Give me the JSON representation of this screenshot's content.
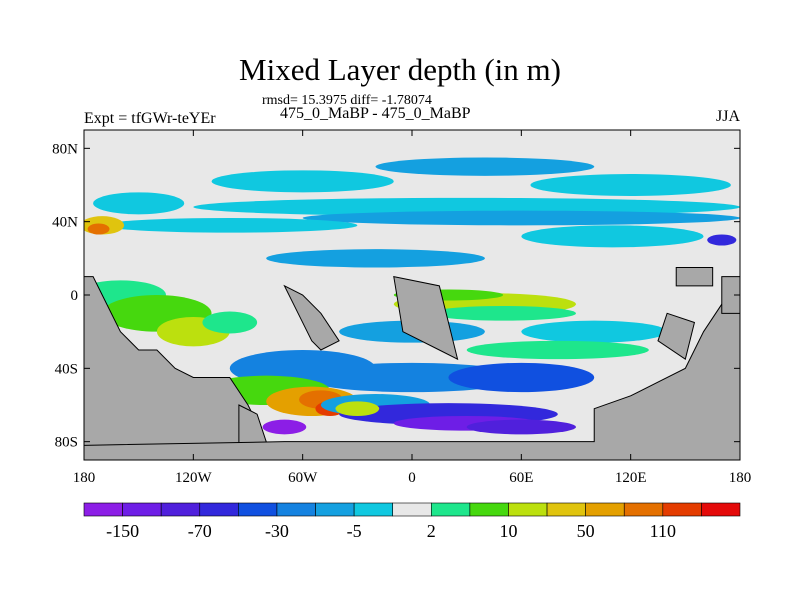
{
  "title": "Mixed Layer depth (in m)",
  "stats": "rmsd= 15.3975 diff= -1.78074",
  "subtitle": "475_0_MaBP - 475_0_MaBP",
  "left_label": "Expt = tfGWr-teYEr",
  "right_label": "JJA",
  "y_ticks": [
    "80N",
    "40N",
    "0",
    "40S",
    "80S"
  ],
  "x_ticks": [
    "180",
    "120W",
    "60W",
    "0",
    "60E",
    "120E",
    "180"
  ],
  "colorbar": {
    "colors": [
      "#8c1ee6",
      "#6e1ee6",
      "#5020dc",
      "#3228dc",
      "#1050e0",
      "#1482e0",
      "#14a0e0",
      "#10c8e0",
      "#e8e8e8",
      "#1ee68c",
      "#46d80e",
      "#bce00e",
      "#e0c40e",
      "#e4a000",
      "#e47000",
      "#e43c00",
      "#e40a0a"
    ],
    "labels": [
      "-150",
      "-70",
      "-30",
      "-5",
      "2",
      "10",
      "50",
      "110"
    ]
  },
  "land_color": "#a8a8a8"
}
